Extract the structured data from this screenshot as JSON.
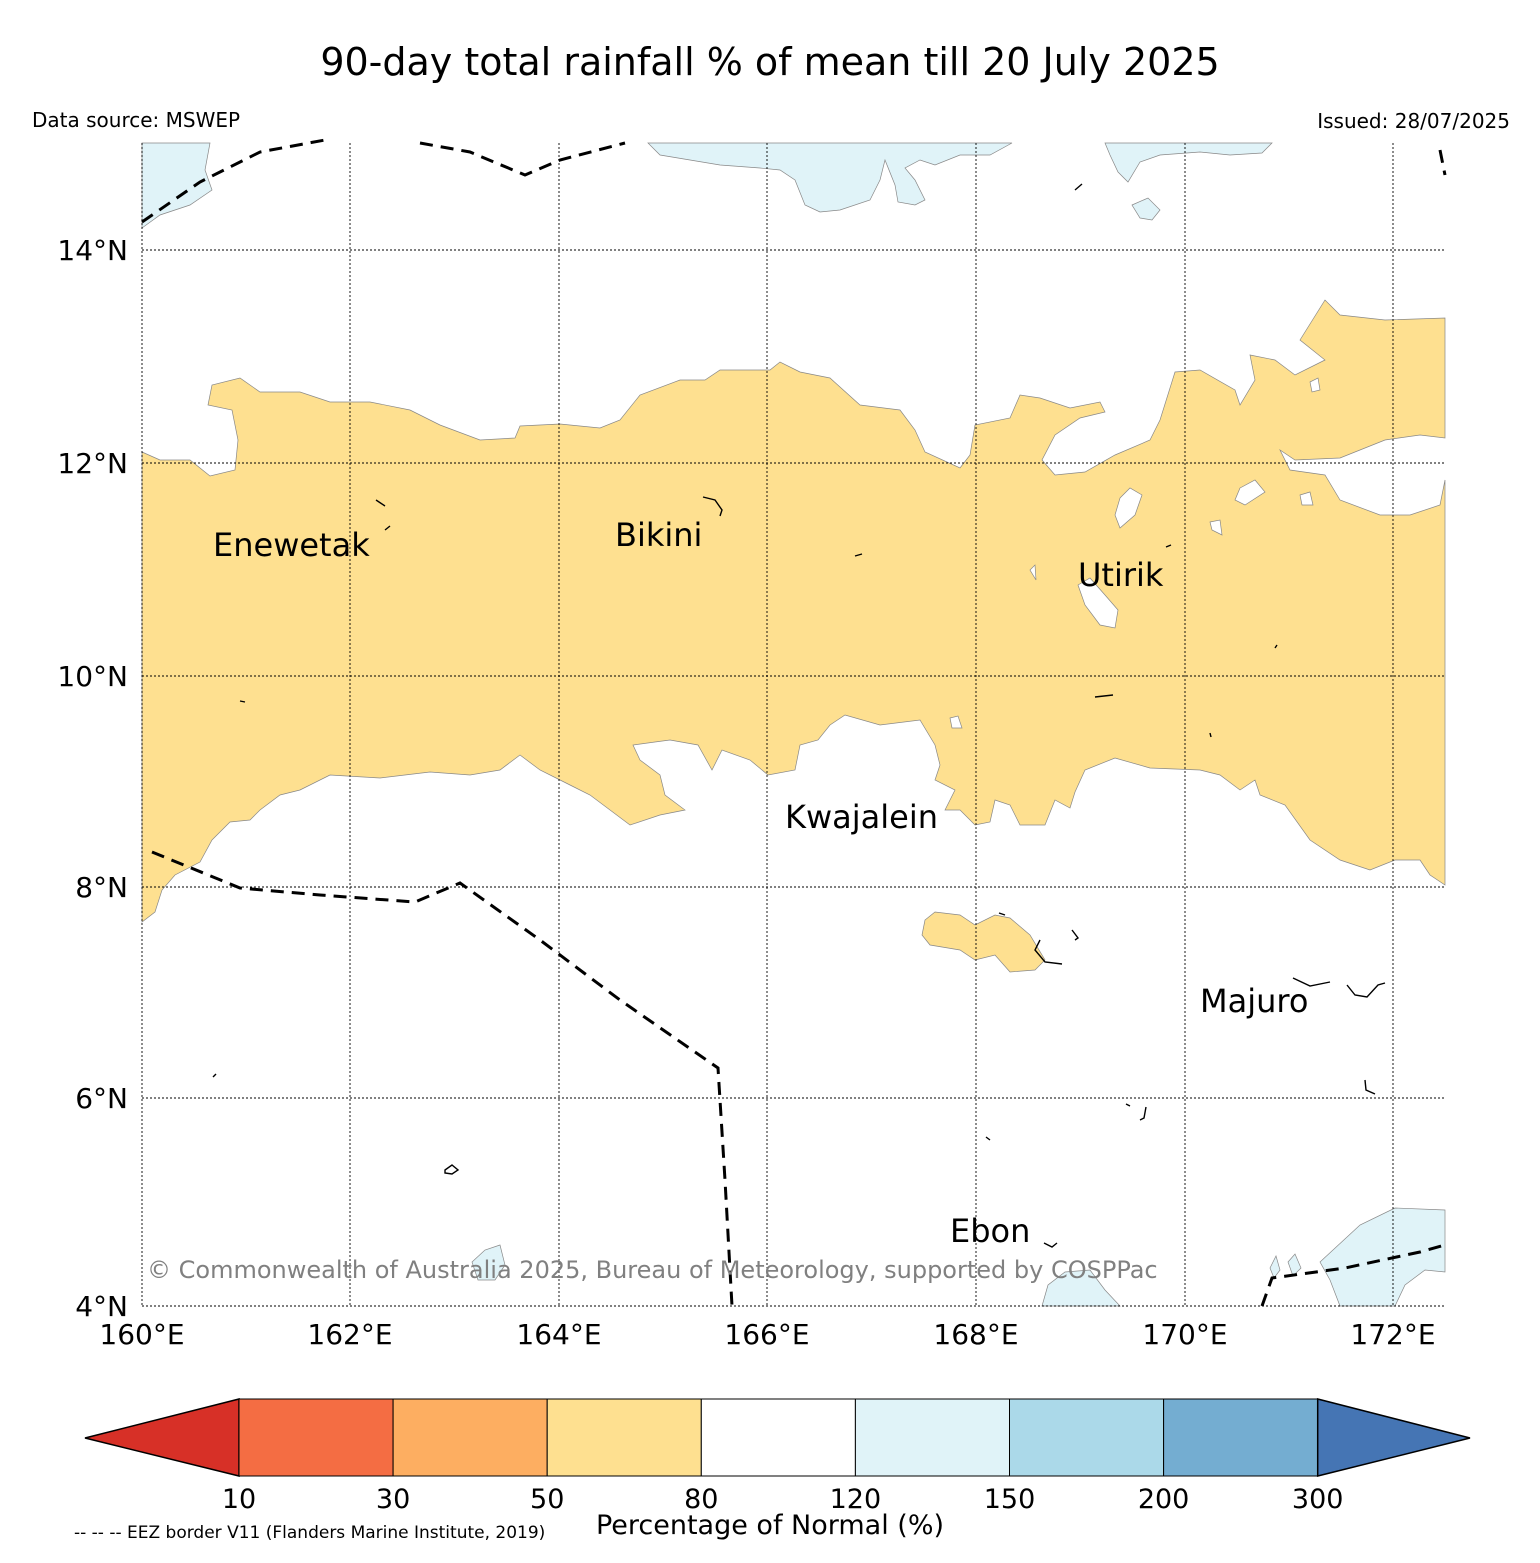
{
  "header": {
    "title": "90-day total rainfall % of mean till 20 July 2025",
    "data_source": "Data source: MSWEP",
    "issued": "Issued: 28/07/2025"
  },
  "map": {
    "lat_labels": [
      "14°N",
      "12°N",
      "10°N",
      "8°N",
      "6°N",
      "4°N"
    ],
    "lon_labels": [
      "160°E",
      "162°E",
      "164°E",
      "166°E",
      "168°E",
      "170°E",
      "172°E"
    ],
    "places": [
      "Enewetak",
      "Bikini",
      "Utirik",
      "Kwajalein",
      "Majuro",
      "Ebon"
    ],
    "copyright": "© Commonwealth of Australia 2025, Bureau of Meteorology, supported by COSPPac"
  },
  "colorbar": {
    "ticks": [
      "10",
      "30",
      "50",
      "80",
      "120",
      "150",
      "200",
      "300"
    ],
    "colors": [
      "#d73027",
      "#f46d43",
      "#fdae61",
      "#fee090",
      "#ffffff",
      "#e0f3f8",
      "#abd9e9",
      "#74add1",
      "#4575b4"
    ],
    "label": "Percentage of Normal (%)"
  },
  "footer": {
    "eez_note": "-- -- -- EEZ border V11 (Flanders Marine Institute, 2019)"
  }
}
